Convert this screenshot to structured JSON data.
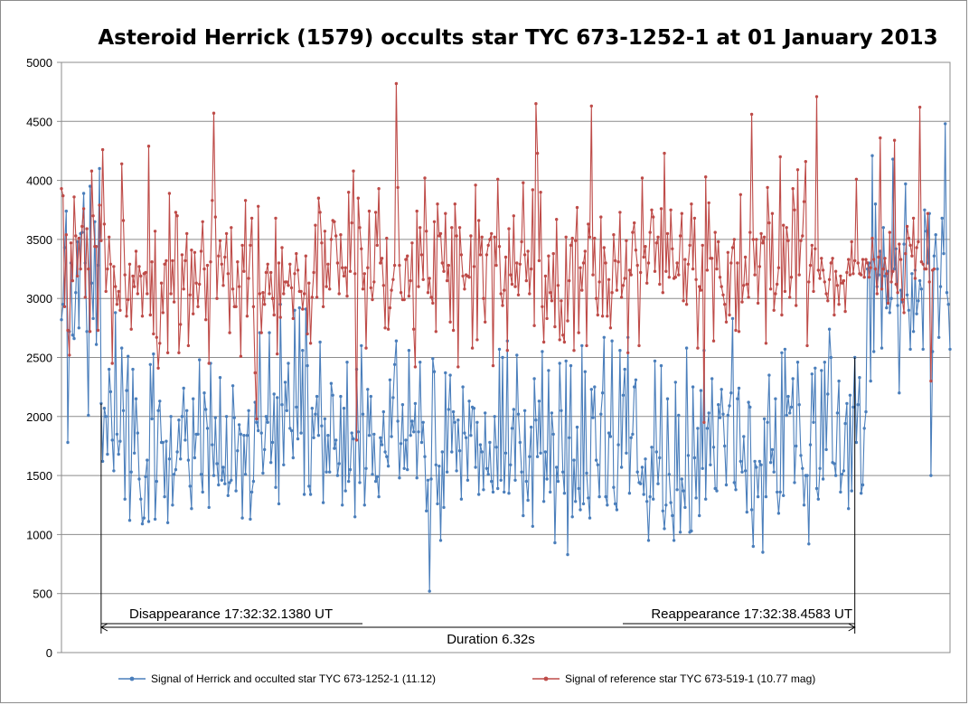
{
  "chart_data": {
    "type": "line",
    "title": "Asteroid Herrick (1579) occults star TYC 673-1252-1 at 01 January 2013",
    "xlabel": "",
    "ylabel": "",
    "ylim": [
      0,
      5000
    ],
    "yticks": [
      "0",
      "500",
      "1000",
      "1500",
      "2000",
      "2500",
      "3000",
      "3500",
      "4000",
      "4500",
      "5000"
    ],
    "grid": "horizontal",
    "legend_position": "bottom",
    "x_range": [
      0,
      560
    ],
    "series": [
      {
        "name": "Signal of Herrick and occulted star TYC 673-1252-1 (11.12)",
        "color": "#4a7ebb",
        "values": [
          2820,
          2950,
          3430,
          3740,
          1780,
          2720,
          3300,
          2690,
          2660,
          3050,
          3480,
          2750,
          3550,
          3560,
          3890,
          3300,
          2720,
          2010,
          3950,
          3130,
          2830,
          3650,
          2610,
          3280,
          4100,
          2110,
          1620,
          2070,
          2000,
          1680,
          2400,
          2210,
          1800,
          1540,
          2880,
          1850,
          1680,
          1790,
          2580,
          2050,
          1300,
          2220,
          2510,
          1120,
          1530,
          2400,
          1690,
          2150,
          1860,
          1470,
          1300,
          1090,
          1140,
          1490,
          1630,
          1110,
          2440,
          1980,
          2530,
          1130,
          1450,
          2050,
          2130,
          1780,
          1780,
          1320,
          1790,
          1100,
          1640,
          2000,
          1250,
          1510,
          1550,
          1700,
          1970,
          1640,
          2000,
          2240,
          1800,
          2050,
          1630,
          1410,
          1220,
          2150,
          1650,
          1850,
          1850,
          2480,
          1510,
          1360,
          2200,
          2060,
          1900,
          1230,
          2450,
          1760,
          1500,
          1990,
          1600,
          1420,
          2330,
          1460,
          1570,
          1430,
          2000,
          1330,
          1440,
          1460,
          2260,
          1990,
          1370,
          1710,
          1930,
          1850,
          1140,
          1840,
          1510,
          1840,
          2050,
          1130,
          1360,
          1450,
          2120,
          1950,
          1880,
          2710,
          1860,
          1520,
          1720,
          2000,
          1950,
          2710,
          1610,
          1780,
          2190,
          1400,
          2160,
          1260,
          2950,
          2100,
          1590,
          2290,
          2050,
          2450,
          1900,
          1880,
          1650,
          2900,
          2080,
          1810,
          2920,
          1860,
          2560,
          1340,
          2910,
          2430,
          1410,
          1340,
          2070,
          1820,
          2020,
          2170,
          1840,
          2630,
          1920,
          1270,
          1980,
          1530,
          1840,
          1530,
          2280,
          2180,
          1730,
          1800,
          1500,
          1600,
          2170,
          1250,
          2070,
          1370,
          2460,
          1450,
          1550,
          1860,
          1810,
          1150,
          2400,
          1870,
          1440,
          2600,
          2020,
          1250,
          1560,
          2230,
          1840,
          2170,
          1510,
          1850,
          1450,
          1490,
          1320,
          1820,
          1760,
          2040,
          1700,
          1660,
          1580,
          2310,
          1830,
          2160,
          2440,
          2640,
          1960,
          1480,
          1770,
          2100,
          1560,
          1800,
          1550,
          2560,
          1840,
          1960,
          1870,
          2110,
          1480,
          1870,
          2460,
          1780,
          1950,
          1660,
          1200,
          1460,
          520,
          1470,
          2490,
          2380,
          1590,
          1260,
          1580,
          950,
          1700,
          1230,
          2370,
          1530,
          2060,
          2350,
          1700,
          2040,
          1950,
          1540,
          1970,
          1710,
          1300,
          2250,
          1860,
          1820,
          1460,
          2130,
          1840,
          2080,
          2070,
          1570,
          1950,
          1340,
          1760,
          1700,
          1380,
          2030,
          1560,
          1510,
          1780,
          1450,
          1360,
          2000,
          1740,
          1390,
          2570,
          1460,
          2500,
          1360,
          1690,
          2640,
          1350,
          1590,
          1900,
          2060,
          1460,
          2520,
          2020,
          1780,
          1530,
          1160,
          2050,
          1450,
          1290,
          1660,
          1910,
          1070,
          2320,
          1970,
          1660,
          2130,
          1690,
          2550,
          1280,
          1700,
          1470,
          2390,
          1360,
          2030,
          1850,
          930,
          1570,
          1450,
          2450,
          2050,
          1530,
          1350,
          2470,
          830,
          1820,
          2430,
          1150,
          1630,
          1280,
          1910,
          1390,
          1210,
          2600,
          1260,
          2380,
          1520,
          1310,
          1140,
          2230,
          1990,
          2250,
          1630,
          1590,
          1320,
          2020,
          2200,
          2670,
          1320,
          1250,
          1860,
          1830,
          2640,
          1400,
          1260,
          1210,
          1760,
          2560,
          1570,
          2180,
          2400,
          1690,
          2670,
          1350,
          1820,
          1850,
          2250,
          2310,
          1530,
          1440,
          1430,
          1570,
          1340,
          1640,
          1280,
          950,
          1320,
          1740,
          1300,
          2470,
          1700,
          1430,
          1650,
          2430,
          1200,
          1050,
          1250,
          2150,
          1510,
          1270,
          1160,
          950,
          2290,
          1380,
          2010,
          1020,
          1470,
          1370,
          1230,
          2580,
          1670,
          1020,
          1030,
          2250,
          1650,
          1310,
          1900,
          1160,
          2220,
          1560,
          2560,
          1300,
          1900,
          2030,
          1590,
          2320,
          1740,
          1390,
          1370,
          2100,
          1990,
          2230,
          2020,
          1750,
          1420,
          2010,
          2090,
          2200,
          2830,
          1440,
          1380,
          2150,
          2240,
          1620,
          1530,
          1830,
          1540,
          1190,
          2120,
          2080,
          1210,
          900,
          1620,
          1570,
          1320,
          1620,
          1590,
          850,
          1980,
          1320,
          1950,
          2350,
          1610,
          1720,
          1530,
          2150,
          1360,
          1180,
          1360,
          2540,
          1330,
          2570,
          2010,
          2170,
          2030,
          2080,
          2320,
          1440,
          1750,
          2460,
          2100,
          1670,
          1560,
          1250,
          1500,
          1500,
          920,
          1760,
          2360,
          1950,
          2410,
          1390,
          1300,
          1560,
          2390,
          1470,
          2460,
          1720,
          2190,
          2740,
          2500,
          1610,
          1600,
          1500,
          2030,
          2300,
          1360,
          1510,
          1540,
          1940,
          2110,
          1220,
          2180,
          1370,
          2080,
          2500,
          1780,
          2100,
          2330,
          1350,
          1420,
          1900,
          2040,
          3250,
          3300,
          2300,
          4210,
          2550,
          3800,
          3100,
          3200,
          3400,
          2580,
          3600,
          3190,
          2920,
          3230,
          2880,
          3000,
          4180,
          3250,
          3420,
          2940,
          2200,
          3070,
          2970,
          3460,
          3970,
          3030,
          2900,
          2570,
          3210,
          2720,
          3240,
          2870,
          2980,
          3150,
          3080,
          2570,
          3750,
          3570,
          3300,
          3720,
          1500,
          2550,
          3360,
          3540,
          3250,
          2670,
          3100,
          3680,
          3380,
          4480,
          3050,
          2950,
          2570
        ]
      },
      {
        "name": "Signal of reference star TYC 673-519-1 (10.77 mag)",
        "color": "#be4b48",
        "values": [
          3930,
          3870,
          2930,
          3540,
          2730,
          2520,
          3470,
          3150,
          3860,
          3530,
          3190,
          3510,
          3250,
          3610,
          3760,
          3010,
          3590,
          3250,
          2720,
          4080,
          3700,
          3440,
          3440,
          2730,
          3790,
          3490,
          4260,
          3630,
          3060,
          3250,
          3520,
          3290,
          2450,
          3270,
          3100,
          2950,
          3060,
          2900,
          4140,
          3660,
          3200,
          2850,
          2990,
          3290,
          2740,
          3190,
          3100,
          3400,
          3040,
          3270,
          3190,
          2850,
          3210,
          3220,
          3040,
          4290,
          2860,
          3310,
          2700,
          3570,
          2670,
          2410,
          2620,
          3130,
          2880,
          3290,
          3320,
          2540,
          3890,
          3040,
          3320,
          2970,
          3730,
          3700,
          2540,
          2780,
          3370,
          3080,
          3320,
          3550,
          2600,
          3030,
          3410,
          2870,
          3390,
          3130,
          2930,
          3120,
          3400,
          3650,
          3250,
          2820,
          3280,
          2450,
          3310,
          3830,
          4570,
          3690,
          3000,
          3360,
          3490,
          3290,
          3110,
          3350,
          3550,
          3210,
          2710,
          3600,
          3080,
          2930,
          2930,
          3310,
          3100,
          2510,
          3450,
          3230,
          3830,
          2850,
          3170,
          3450,
          3680,
          2930,
          2370,
          1980,
          3780,
          3040,
          2710,
          3050,
          2950,
          3220,
          3290,
          3040,
          3220,
          3000,
          2860,
          3680,
          2530,
          3300,
          2840,
          3430,
          3040,
          3140,
          3140,
          3110,
          3290,
          3090,
          2830,
          3210,
          3380,
          3240,
          3060,
          3060,
          2910,
          3040,
          3360,
          2700,
          3130,
          2620,
          3010,
          3220,
          3620,
          3010,
          3850,
          3730,
          3470,
          2930,
          3570,
          3100,
          3290,
          3080,
          3500,
          3660,
          3650,
          3530,
          3300,
          3040,
          3540,
          3260,
          3190,
          3260,
          3020,
          3900,
          3230,
          3640,
          4080,
          3210,
          1800,
          3850,
          3600,
          3420,
          3080,
          3210,
          2580,
          3260,
          3740,
          3090,
          2990,
          3140,
          3730,
          3450,
          3930,
          3300,
          3340,
          3110,
          2750,
          3510,
          2740,
          2920,
          3070,
          3160,
          3280,
          4820,
          3940,
          3280,
          3050,
          2990,
          2990,
          3330,
          3360,
          3020,
          3150,
          3470,
          2740,
          2420,
          3740,
          3100,
          3600,
          3370,
          3160,
          4020,
          3570,
          3050,
          3170,
          3010,
          2960,
          3650,
          2720,
          3800,
          3530,
          3550,
          3300,
          3230,
          3720,
          3150,
          3280,
          2800,
          3600,
          2730,
          3800,
          3530,
          2420,
          3600,
          3370,
          3190,
          3080,
          3200,
          3190,
          3180,
          3530,
          2580,
          3270,
          3960,
          2650,
          3660,
          3370,
          3520,
          3000,
          2800,
          3370,
          3450,
          3500,
          3550,
          2430,
          3520,
          3280,
          4010,
          3440,
          3040,
          2940,
          3070,
          3350,
          2560,
          3590,
          3200,
          3120,
          3700,
          3100,
          3300,
          3030,
          3290,
          3480,
          3980,
          3370,
          3150,
          3400,
          3040,
          3250,
          3920,
          2770,
          4650,
          4230,
          3320,
          3900,
          2930,
          2630,
          3190,
          2830,
          3360,
          3050,
          2980,
          3380,
          2760,
          3670,
          3110,
          2650,
          2980,
          2690,
          2630,
          3520,
          2810,
          3150,
          3450,
          3510,
          2560,
          3490,
          3770,
          2710,
          3260,
          3070,
          3300,
          3400,
          2600,
          3630,
          3520,
          4630,
          3200,
          3510,
          3000,
          2860,
          3140,
          3690,
          2850,
          3430,
          3300,
          2850,
          3160,
          2750,
          3050,
          3540,
          3320,
          3070,
          3310,
          3730,
          3010,
          3110,
          3170,
          3490,
          2540,
          3240,
          3200,
          3560,
          3640,
          3410,
          3280,
          2600,
          3220,
          4020,
          3350,
          3440,
          3130,
          3300,
          3560,
          3750,
          3690,
          3230,
          3470,
          3520,
          3120,
          3760,
          3050,
          4230,
          3230,
          3550,
          3180,
          3750,
          3420,
          3170,
          3180,
          3300,
          3200,
          3530,
          3720,
          2980,
          3330,
          2950,
          3290,
          3450,
          3800,
          3250,
          3680,
          3160,
          2580,
          3100,
          3070,
          3450,
          1950,
          4030,
          3240,
          3810,
          3340,
          3340,
          2640,
          3560,
          3250,
          3480,
          3180,
          3100,
          3030,
          2950,
          2800,
          3390,
          2860,
          3300,
          3430,
          3500,
          2730,
          3300,
          2720,
          3880,
          2970,
          3110,
          3350,
          3120,
          3010,
          3560,
          4560,
          3500,
          3200,
          3500,
          2960,
          3270,
          3550,
          3470,
          3520,
          2620,
          3940,
          3640,
          3080,
          3720,
          2900,
          3040,
          3120,
          3260,
          4200,
          2860,
          3620,
          3060,
          3600,
          3490,
          3010,
          3180,
          3930,
          3750,
          2940,
          4090,
          3200,
          3490,
          3530,
          3820,
          4160,
          2600,
          3140,
          3280,
          3450,
          3060,
          3420,
          4710,
          3240,
          3170,
          3340,
          3240,
          3140,
          3040,
          2980,
          3160,
          3300,
          3340,
          2860,
          3230,
          3110,
          2950,
          3190,
          3130,
          3150,
          2890,
          3220,
          3330,
          3200,
          3480,
          3210,
          3320,
          4010,
          3300,
          3210,
          3200,
          3330,
          3180,
          3330,
          3300,
          3180,
          3260,
          3510,
          3330,
          3250,
          3040,
          3350,
          4360,
          3080,
          3250,
          3340,
          3210,
          2960,
          3560,
          3140,
          3230,
          4340,
          3120,
          3050,
          3460,
          3330,
          2990,
          2880,
          3380,
          3610,
          3510,
          3450,
          3360,
          3680,
          3170,
          3430,
          3480,
          4620,
          3310,
          3290,
          3250,
          3250,
          3720,
          3140,
          2300,
          3240,
          3250
        ]
      }
    ],
    "annotations": {
      "disappearance": "Disappearance 17:32:32.1380 UT",
      "reappearance": "Reappearance 17:32:38.4583 UT",
      "duration": "Duration 6.32s",
      "disappearance_index": 25,
      "reappearance_index": 500
    }
  }
}
